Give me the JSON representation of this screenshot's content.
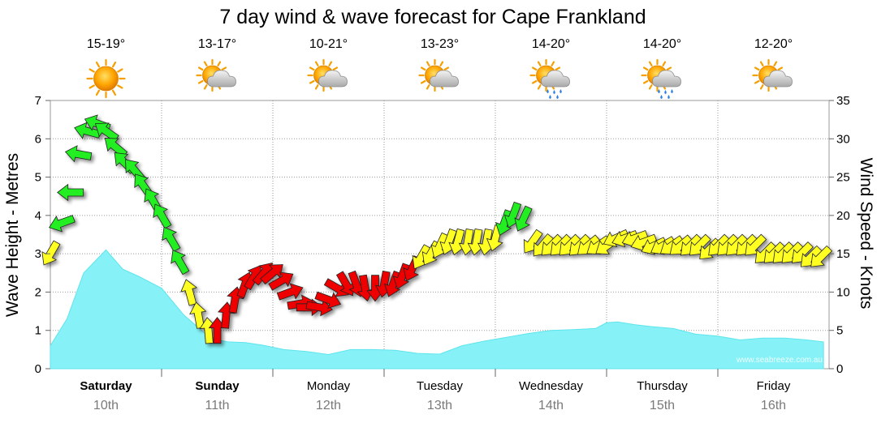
{
  "chart_data": {
    "type": "area+wind-arrows",
    "title": "7 day wind & wave forecast for Cape Frankland",
    "ylabel_left": "Wave Height - Metres",
    "ylabel_right": "Wind Speed - Knots",
    "ylim_left": [
      0,
      7
    ],
    "ylim_right": [
      0,
      35
    ],
    "yticks_left": [
      "0",
      "1",
      "2",
      "3",
      "4",
      "5",
      "6",
      "7"
    ],
    "yticks_right": [
      "0",
      "5",
      "10",
      "15",
      "20",
      "25",
      "30",
      "35"
    ],
    "watermark": "www.seabreeze.com.au",
    "colors": {
      "wave_fill": "#86f2f7",
      "wave_line": "#5ee4ec",
      "green": "#22ee22",
      "yellow": "#ffff22",
      "red": "#ee0000",
      "grid": "#9a9a9a"
    },
    "days": [
      {
        "name": "Saturday",
        "date": "10th",
        "bold": true,
        "temp": "15-19°",
        "icon": "sun-icon"
      },
      {
        "name": "Sunday",
        "date": "11th",
        "bold": true,
        "temp": "13-17°",
        "icon": "sun-cloud-icon"
      },
      {
        "name": "Monday",
        "date": "12th",
        "bold": false,
        "temp": "10-21°",
        "icon": "sun-cloud-icon"
      },
      {
        "name": "Tuesday",
        "date": "13th",
        "bold": false,
        "temp": "13-23°",
        "icon": "sun-cloud-icon"
      },
      {
        "name": "Wednesday",
        "date": "14th",
        "bold": false,
        "temp": "14-20°",
        "icon": "sun-cloud-rain-icon"
      },
      {
        "name": "Thursday",
        "date": "15th",
        "bold": false,
        "temp": "14-20°",
        "icon": "sun-cloud-rain-icon"
      },
      {
        "name": "Friday",
        "date": "16th",
        "bold": false,
        "temp": "12-20°",
        "icon": "sun-cloud-icon"
      }
    ],
    "wave_height_m": {
      "x_days": [
        0,
        0.15,
        0.3,
        0.5,
        0.65,
        0.8,
        1.0,
        1.2,
        1.4,
        1.5,
        1.6,
        1.75,
        1.9,
        2.1,
        2.3,
        2.5,
        2.7,
        2.9,
        3.1,
        3.3,
        3.5,
        3.7,
        3.9,
        4.1,
        4.3,
        4.5,
        4.7,
        4.9,
        5.0,
        5.1,
        5.25,
        5.4,
        5.6,
        5.8,
        6.0,
        6.2,
        6.4,
        6.6,
        6.8,
        6.95
      ],
      "values": [
        0.6,
        1.3,
        2.5,
        3.1,
        2.6,
        2.4,
        2.1,
        1.4,
        0.9,
        0.75,
        0.7,
        0.68,
        0.62,
        0.5,
        0.45,
        0.37,
        0.5,
        0.5,
        0.48,
        0.4,
        0.38,
        0.6,
        0.72,
        0.82,
        0.92,
        1.0,
        1.02,
        1.05,
        1.2,
        1.22,
        1.15,
        1.1,
        1.05,
        0.9,
        0.85,
        0.75,
        0.8,
        0.8,
        0.75,
        0.7
      ]
    },
    "wind": {
      "x_days": [
        0.0,
        0.1,
        0.18,
        0.25,
        0.33,
        0.42,
        0.5,
        0.58,
        0.66,
        0.75,
        0.83,
        0.92,
        1.0,
        1.08,
        1.16,
        1.25,
        1.33,
        1.42,
        1.5,
        1.58,
        1.66,
        1.75,
        1.83,
        1.92,
        2.0,
        2.08,
        2.16,
        2.25,
        2.33,
        2.42,
        2.5,
        2.58,
        2.66,
        2.75,
        2.83,
        2.92,
        3.0,
        3.08,
        3.16,
        3.25,
        3.33,
        3.42,
        3.5,
        3.58,
        3.66,
        3.75,
        3.83,
        3.92,
        4.0,
        4.08,
        4.16,
        4.25,
        4.33,
        4.42,
        4.5,
        4.58,
        4.66,
        4.75,
        4.83,
        4.92,
        5.0,
        5.08,
        5.16,
        5.25,
        5.33,
        5.42,
        5.5,
        5.58,
        5.66,
        5.75,
        5.83,
        5.92,
        6.0,
        6.08,
        6.16,
        6.25,
        6.33,
        6.42,
        6.5,
        6.58,
        6.66,
        6.75,
        6.83,
        6.92
      ],
      "speed_kt": [
        15,
        19,
        23,
        28,
        31,
        32,
        31,
        29,
        27,
        26,
        24,
        22,
        20,
        17,
        14,
        10,
        7,
        5,
        5,
        7,
        9,
        11,
        12,
        12.5,
        12.5,
        11.5,
        10,
        8.5,
        8,
        8,
        9,
        10.5,
        11,
        11,
        10.5,
        10.5,
        11,
        11,
        12,
        13,
        14.5,
        15,
        16,
        16.5,
        16.5,
        16.5,
        16.5,
        16.5,
        17,
        19,
        20,
        19.5,
        16.5,
        16,
        16,
        16,
        16,
        16,
        16,
        16,
        16,
        17,
        17,
        17,
        16.5,
        16,
        16,
        16,
        16,
        16,
        16,
        15.5,
        16,
        16,
        16,
        16,
        16,
        15,
        15,
        15,
        15,
        15,
        14.5,
        14.5
      ],
      "direction_to_deg": [
        210,
        250,
        270,
        280,
        285,
        290,
        305,
        310,
        315,
        320,
        325,
        330,
        330,
        330,
        330,
        345,
        350,
        355,
        0,
        5,
        10,
        20,
        30,
        40,
        50,
        60,
        70,
        80,
        90,
        100,
        110,
        120,
        150,
        160,
        170,
        180,
        190,
        200,
        200,
        205,
        210,
        210,
        205,
        200,
        195,
        190,
        190,
        190,
        195,
        200,
        200,
        205,
        215,
        220,
        225,
        225,
        225,
        225,
        230,
        235,
        235,
        245,
        250,
        250,
        250,
        245,
        240,
        235,
        230,
        225,
        225,
        225,
        225,
        225,
        225,
        225,
        225,
        225,
        225,
        225,
        225,
        225,
        225,
        225
      ],
      "color_class": [
        "yellow",
        "green",
        "green",
        "green",
        "green",
        "green",
        "green",
        "green",
        "green",
        "green",
        "green",
        "green",
        "green",
        "green",
        "green",
        "yellow",
        "yellow",
        "yellow",
        "red",
        "red",
        "red",
        "red",
        "red",
        "red",
        "red",
        "red",
        "red",
        "red",
        "red",
        "red",
        "red",
        "red",
        "red",
        "red",
        "red",
        "red",
        "red",
        "red",
        "red",
        "red",
        "yellow",
        "yellow",
        "yellow",
        "yellow",
        "yellow",
        "yellow",
        "yellow",
        "yellow",
        "yellow",
        "green",
        "green",
        "green",
        "yellow",
        "yellow",
        "yellow",
        "yellow",
        "yellow",
        "yellow",
        "yellow",
        "yellow",
        "yellow",
        "yellow",
        "yellow",
        "yellow",
        "yellow",
        "yellow",
        "yellow",
        "yellow",
        "yellow",
        "yellow",
        "yellow",
        "yellow",
        "yellow",
        "yellow",
        "yellow",
        "yellow",
        "yellow",
        "yellow",
        "yellow",
        "yellow",
        "yellow",
        "yellow",
        "yellow",
        "yellow"
      ]
    }
  }
}
